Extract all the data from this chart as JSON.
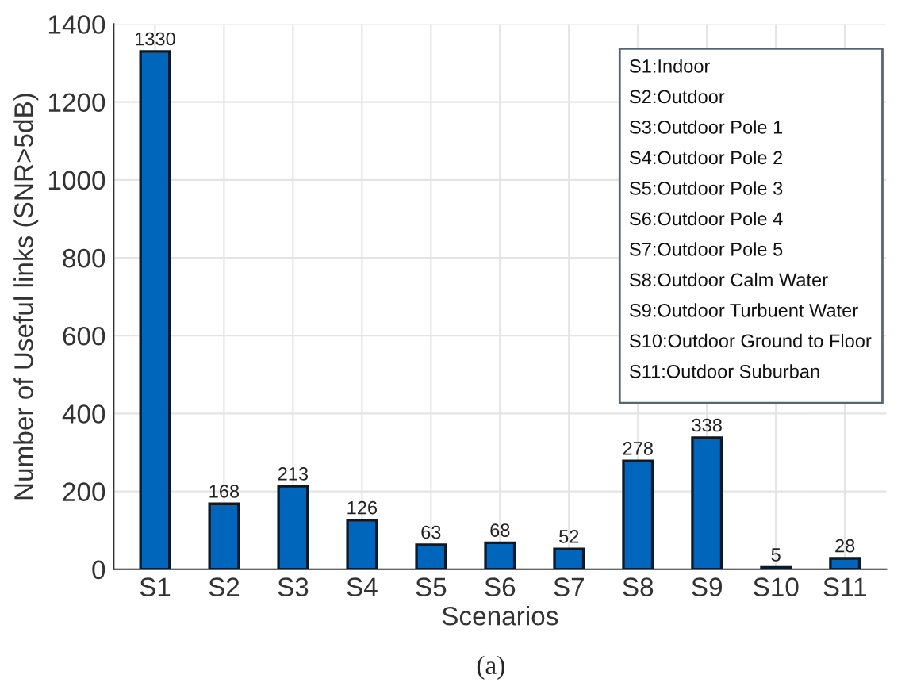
{
  "chart_data": {
    "type": "bar",
    "xlabel": "Scenarios",
    "ylabel": "Number of Useful links (SNR>5dB)",
    "categories": [
      "S1",
      "S2",
      "S3",
      "S4",
      "S5",
      "S6",
      "S7",
      "S8",
      "S9",
      "S10",
      "S11"
    ],
    "values": [
      1330,
      168,
      213,
      126,
      63,
      68,
      52,
      278,
      338,
      5,
      28
    ],
    "color": "#0066bb",
    "ylim": [
      0,
      1400
    ],
    "yticks": [
      0,
      200,
      400,
      600,
      800,
      1000,
      1200,
      1400
    ],
    "grid": true,
    "data_labels": true,
    "annotations": [
      "S1:Indoor",
      "S2:Outdoor",
      "S3:Outdoor Pole 1",
      "S4:Outdoor Pole 2",
      "S5:Outdoor Pole 3",
      "S6:Outdoor Pole 4",
      "S7:Outdoor Pole 5",
      "S8:Outdoor Calm Water",
      "S9:Outdoor Turbuent Water",
      "S10:Outdoor Ground to Floor",
      "S11:Outdoor Suburban",
      "(a)"
    ]
  }
}
